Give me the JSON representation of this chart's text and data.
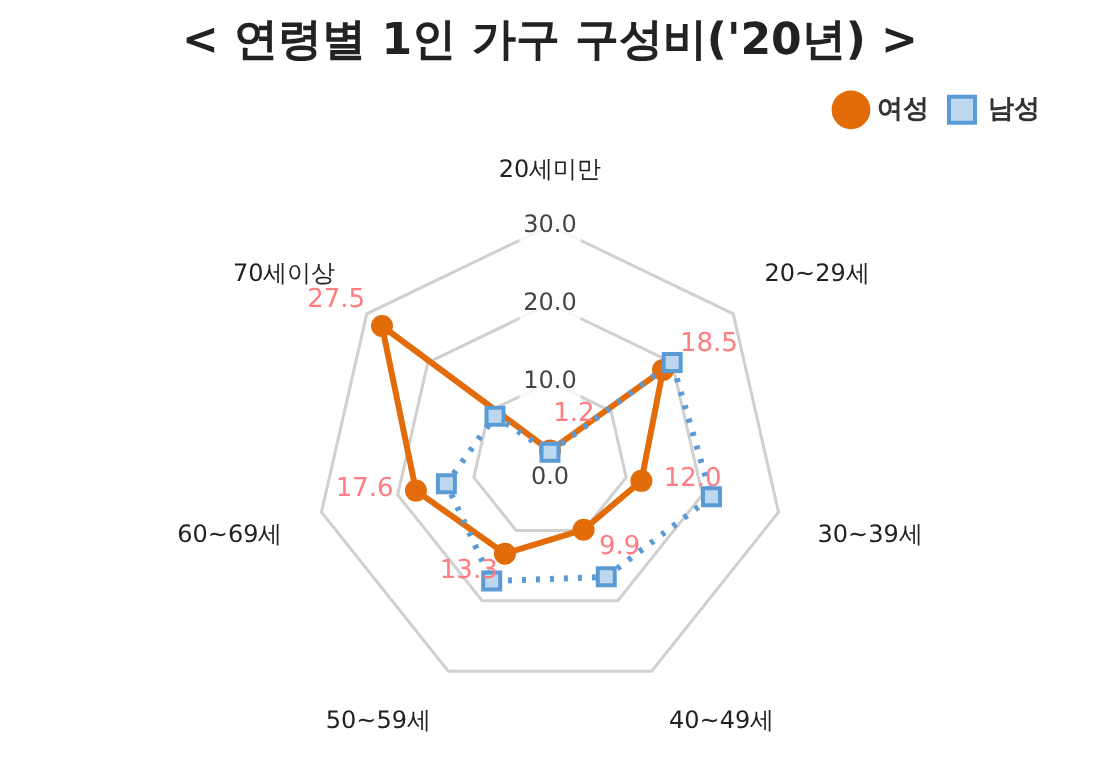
{
  "chart_data": {
    "type": "radar",
    "title": "< 연령별 1인 가구 구성비('20년) >",
    "categories": [
      "20세미만",
      "20~29세",
      "30~39세",
      "40~49세",
      "50~59세",
      "60~69세",
      "70세이상"
    ],
    "series": [
      {
        "name": "여성",
        "color": "#e36c0a",
        "marker": "circle",
        "line_style": "solid",
        "values": [
          1.2,
          18.5,
          12.0,
          9.9,
          13.3,
          17.6,
          27.5
        ],
        "value_labels": [
          "1.2",
          "18.5",
          "12.0",
          "9.9",
          "13.3",
          "17.6",
          "27.5"
        ]
      },
      {
        "name": "남성",
        "color": "#5b9bd5",
        "marker": "square",
        "line_style": "dotted",
        "values": [
          1.0,
          20.0,
          21.2,
          16.6,
          17.2,
          13.6,
          9.0
        ]
      }
    ],
    "ylim": [
      0,
      30
    ],
    "yticks": [
      {
        "value": 0,
        "label": "0.0"
      },
      {
        "value": 10,
        "label": "10.0"
      },
      {
        "value": 20,
        "label": "20.0"
      },
      {
        "value": 30,
        "label": "30.0"
      }
    ],
    "grid": true,
    "legend": "top right"
  }
}
